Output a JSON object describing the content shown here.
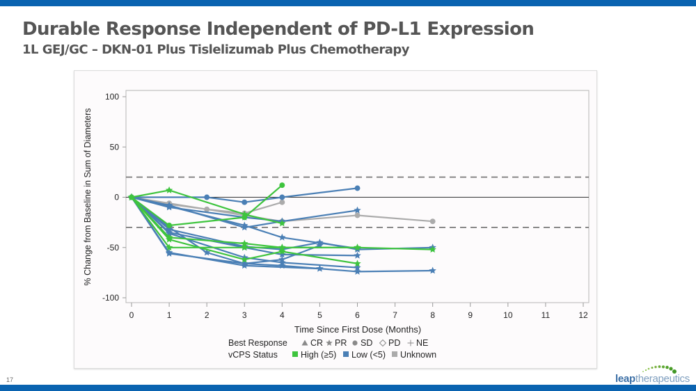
{
  "slide": {
    "title": "Durable Response Independent of PD-L1 Expression",
    "subtitle": "1L GEJ/GC – DKN-01 Plus Tislelizumab Plus Chemotherapy",
    "page_number": "17",
    "logo": {
      "part1": "leap",
      "part2": "therapeutics"
    }
  },
  "colors": {
    "brand_bar": "#0a63b0",
    "high": "#3ec43e",
    "low": "#4a7fb5",
    "unknown": "#ababab"
  },
  "chart_data": {
    "type": "line",
    "title": "",
    "xlabel": "Time Since First Dose (Months)",
    "ylabel": "% Change from Baseline in Sum of Diameters",
    "xlim": [
      0,
      12
    ],
    "ylim": [
      -100,
      100
    ],
    "xticks": [
      0,
      1,
      2,
      3,
      4,
      5,
      6,
      7,
      8,
      9,
      10,
      11,
      12
    ],
    "yticks": [
      100,
      50,
      0,
      -50,
      -100
    ],
    "reference_lines": [
      {
        "y": 20,
        "style": "dashed"
      },
      {
        "y": 0,
        "style": "solid"
      },
      {
        "y": -30,
        "style": "dashed"
      }
    ],
    "legend": {
      "placement": "bottom",
      "best_response_label": "Best Response",
      "best_response_items": [
        {
          "symbol": "▲",
          "label": "CR"
        },
        {
          "symbol": "★",
          "label": "PR"
        },
        {
          "symbol": "●",
          "label": "SD"
        },
        {
          "symbol": "◇",
          "label": "PD"
        },
        {
          "symbol": "+",
          "label": "NE"
        }
      ],
      "vcps_label": "vCPS Status",
      "vcps_items": [
        {
          "key": "high",
          "label": "High (≥5)"
        },
        {
          "key": "low",
          "label": "Low (<5)"
        },
        {
          "key": "unknown",
          "label": "Unknown"
        }
      ]
    },
    "series": [
      {
        "name": "pt-g1",
        "vcps": "high",
        "response": "PR",
        "x": [
          0,
          1,
          3,
          4
        ],
        "y": [
          0,
          7,
          -17,
          -26
        ]
      },
      {
        "name": "pt-g2",
        "vcps": "high",
        "response": "SD",
        "x": [
          0,
          1,
          3,
          4
        ],
        "y": [
          0,
          -28,
          -20,
          12
        ]
      },
      {
        "name": "pt-g3",
        "vcps": "high",
        "response": "PR",
        "x": [
          0,
          1,
          3,
          4,
          6
        ],
        "y": [
          0,
          -40,
          -46,
          -50,
          -50
        ]
      },
      {
        "name": "pt-g4",
        "vcps": "high",
        "response": "PR",
        "x": [
          0,
          1,
          3,
          4,
          6,
          8
        ],
        "y": [
          0,
          -50,
          -50,
          -50,
          -50,
          -52
        ]
      },
      {
        "name": "pt-g5",
        "vcps": "high",
        "response": "PR",
        "x": [
          0,
          1,
          3,
          4,
          6
        ],
        "y": [
          0,
          -42,
          -62,
          -54,
          -66
        ]
      },
      {
        "name": "pt-b1",
        "vcps": "low",
        "response": "SD",
        "x": [
          0,
          2,
          3,
          4,
          6
        ],
        "y": [
          0,
          0,
          -5,
          0,
          9
        ]
      },
      {
        "name": "pt-b2",
        "vcps": "low",
        "response": "PR",
        "x": [
          0,
          1,
          3,
          4,
          6
        ],
        "y": [
          0,
          -10,
          -20,
          -24,
          -13
        ]
      },
      {
        "name": "pt-b3",
        "vcps": "low",
        "response": "PR",
        "x": [
          0,
          1,
          3,
          4
        ],
        "y": [
          0,
          -8,
          -30,
          -24
        ]
      },
      {
        "name": "pt-b4",
        "vcps": "low",
        "response": "PR",
        "x": [
          0,
          1,
          3,
          4,
          6
        ],
        "y": [
          0,
          -9,
          -28,
          -40,
          -51
        ]
      },
      {
        "name": "pt-b5",
        "vcps": "low",
        "response": "PR",
        "x": [
          0,
          1,
          3,
          4,
          5,
          6,
          8
        ],
        "y": [
          0,
          -32,
          -49,
          -52,
          -45,
          -52,
          -50
        ]
      },
      {
        "name": "pt-b6",
        "vcps": "low",
        "response": "PR",
        "x": [
          0,
          1,
          3,
          4,
          6
        ],
        "y": [
          0,
          -35,
          -50,
          -57,
          -58
        ]
      },
      {
        "name": "pt-b7",
        "vcps": "low",
        "response": "PR",
        "x": [
          0,
          1,
          3,
          4,
          6
        ],
        "y": [
          0,
          -36,
          -60,
          -65,
          -70
        ]
      },
      {
        "name": "pt-b8",
        "vcps": "low",
        "response": "PR",
        "x": [
          0,
          1,
          2,
          3,
          4,
          5
        ],
        "y": [
          0,
          -30,
          -55,
          -66,
          -62,
          -48
        ]
      },
      {
        "name": "pt-b9",
        "vcps": "low",
        "response": "PR",
        "x": [
          0,
          1,
          3,
          5,
          6,
          8
        ],
        "y": [
          0,
          -55,
          -68,
          -71,
          -74,
          -73
        ]
      },
      {
        "name": "pt-b10",
        "vcps": "low",
        "response": "PR",
        "x": [
          0,
          1,
          3,
          4,
          5
        ],
        "y": [
          0,
          -56,
          -66,
          -68,
          -71
        ]
      },
      {
        "name": "pt-u1",
        "vcps": "unknown",
        "response": "SD",
        "x": [
          0,
          1,
          2,
          3,
          4
        ],
        "y": [
          0,
          -7,
          -12,
          -16,
          -5
        ]
      },
      {
        "name": "pt-u2",
        "vcps": "unknown",
        "response": "SD",
        "x": [
          0,
          1,
          4,
          6,
          8
        ],
        "y": [
          0,
          -6,
          -24,
          -18,
          -24
        ]
      }
    ]
  }
}
